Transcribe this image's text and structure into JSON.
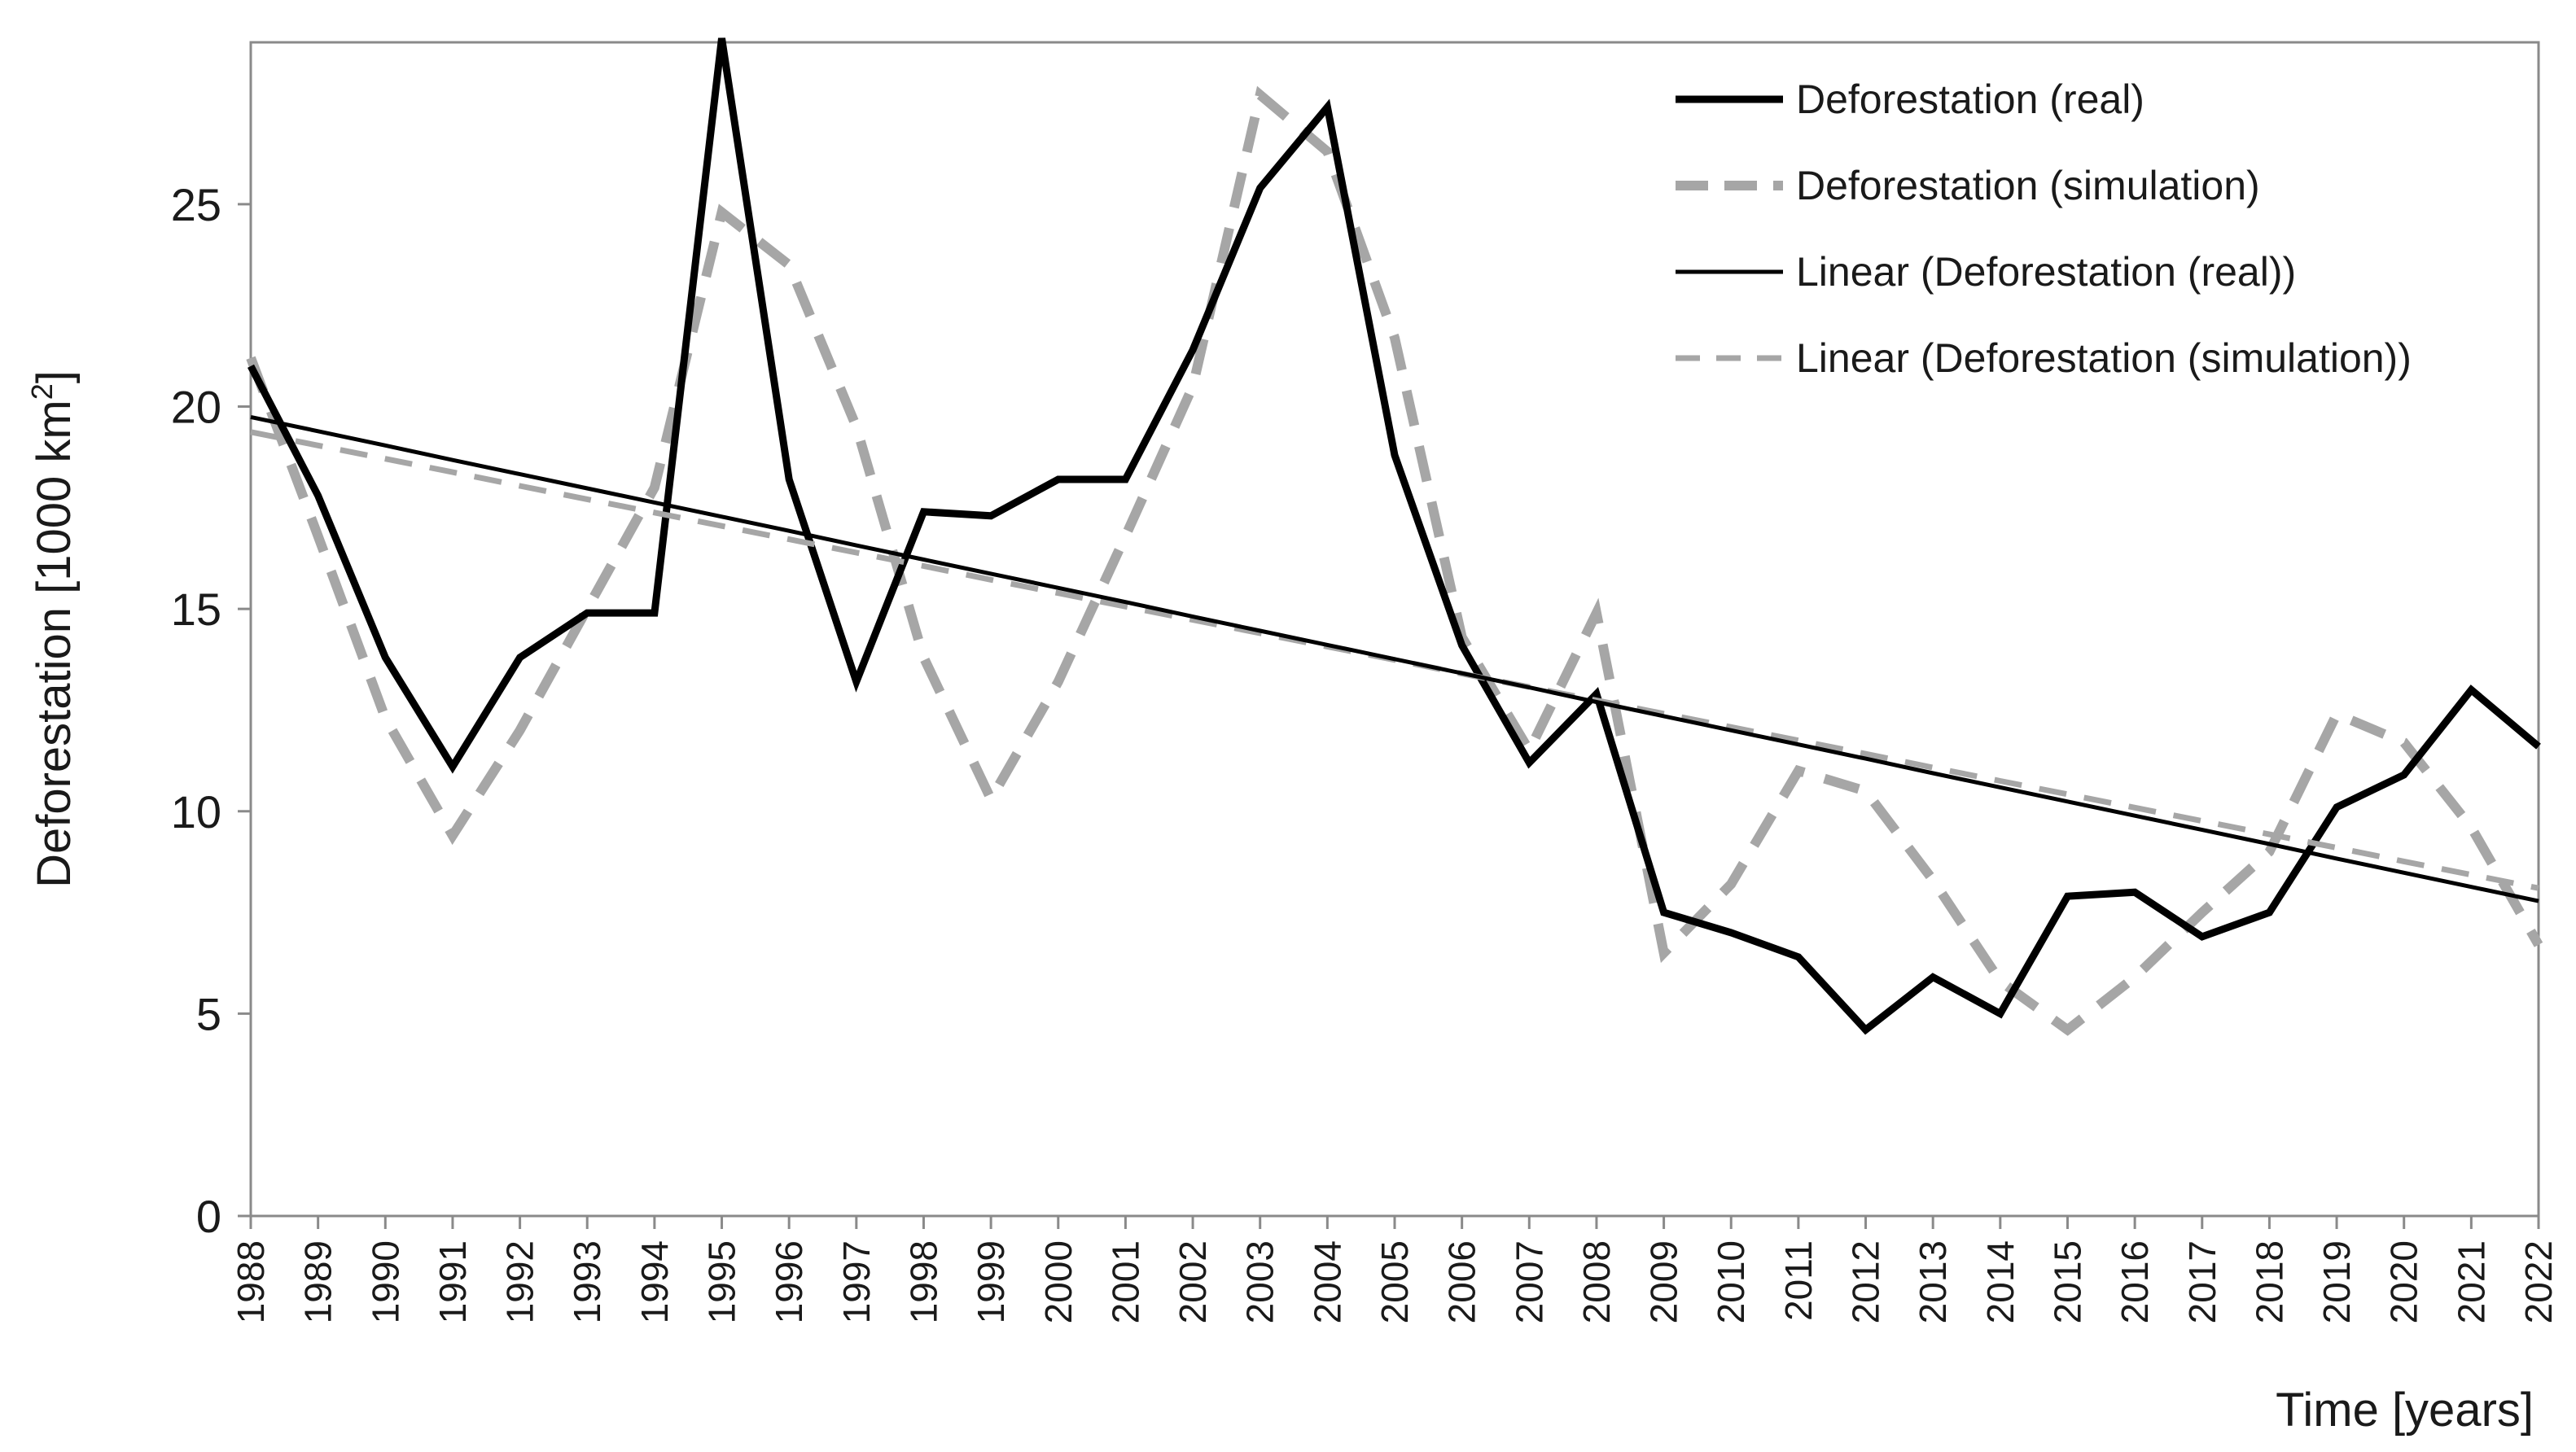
{
  "chart_data": {
    "type": "line",
    "title": "",
    "xlabel": "Time [years]",
    "ylabel_main": "Deforestation [1000 km",
    "ylabel_sup": "2",
    "ylabel_end": "]",
    "ylim": [
      0,
      29
    ],
    "yticks": [
      0,
      5,
      10,
      15,
      20,
      25
    ],
    "x": [
      1988,
      1989,
      1990,
      1991,
      1992,
      1993,
      1994,
      1995,
      1996,
      1997,
      1998,
      1999,
      2000,
      2001,
      2002,
      2003,
      2004,
      2005,
      2006,
      2007,
      2008,
      2009,
      2010,
      2011,
      2012,
      2013,
      2014,
      2015,
      2016,
      2017,
      2018,
      2019,
      2020,
      2021,
      2022
    ],
    "legend_position": "top-right",
    "series": [
      {
        "name": "Deforestation (real)",
        "color": "#000000",
        "style": "solid-bold",
        "values": [
          21.0,
          17.8,
          13.8,
          11.1,
          13.8,
          14.9,
          14.9,
          29.1,
          18.2,
          13.2,
          17.4,
          17.3,
          18.2,
          18.2,
          21.4,
          25.4,
          27.4,
          18.8,
          14.1,
          11.2,
          12.9,
          7.5,
          7.0,
          6.4,
          4.6,
          5.9,
          5.0,
          7.9,
          8.0,
          6.9,
          7.5,
          10.1,
          10.9,
          13.0,
          11.6
        ]
      },
      {
        "name": "Deforestation (simulation)",
        "color": "#a6a6a6",
        "style": "dashed-bold",
        "values": [
          21.2,
          16.8,
          12.3,
          9.4,
          12.0,
          15.0,
          18.0,
          24.8,
          23.5,
          19.5,
          13.8,
          10.3,
          13.2,
          16.8,
          20.5,
          27.7,
          26.3,
          21.7,
          14.3,
          11.5,
          14.9,
          6.5,
          8.2,
          11.0,
          10.5,
          8.3,
          5.8,
          4.6,
          5.9,
          7.5,
          9.0,
          12.4,
          11.7,
          9.6,
          6.7
        ]
      },
      {
        "name": "Linear (Deforestation (real))",
        "color": "#000000",
        "style": "solid-thin",
        "values": [
          19.74,
          19.39,
          19.04,
          18.68,
          18.33,
          17.98,
          17.63,
          17.28,
          16.93,
          16.57,
          16.22,
          15.87,
          15.52,
          15.17,
          14.81,
          14.46,
          14.11,
          13.76,
          13.41,
          13.06,
          12.7,
          12.35,
          12.0,
          11.65,
          11.3,
          10.94,
          10.59,
          10.24,
          9.89,
          9.54,
          9.19,
          8.83,
          8.48,
          8.13,
          7.78
        ]
      },
      {
        "name": "Linear (Deforestation (simulation))",
        "color": "#a6a6a6",
        "style": "dashed-thin",
        "values": [
          19.37,
          19.04,
          18.71,
          18.38,
          18.04,
          17.71,
          17.38,
          17.05,
          16.72,
          16.39,
          16.06,
          15.72,
          15.39,
          15.06,
          14.73,
          14.4,
          14.07,
          13.74,
          13.4,
          13.07,
          12.74,
          12.41,
          12.08,
          11.75,
          11.42,
          11.08,
          10.75,
          10.42,
          10.09,
          9.76,
          9.43,
          9.1,
          8.76,
          8.43,
          8.1
        ]
      }
    ]
  }
}
